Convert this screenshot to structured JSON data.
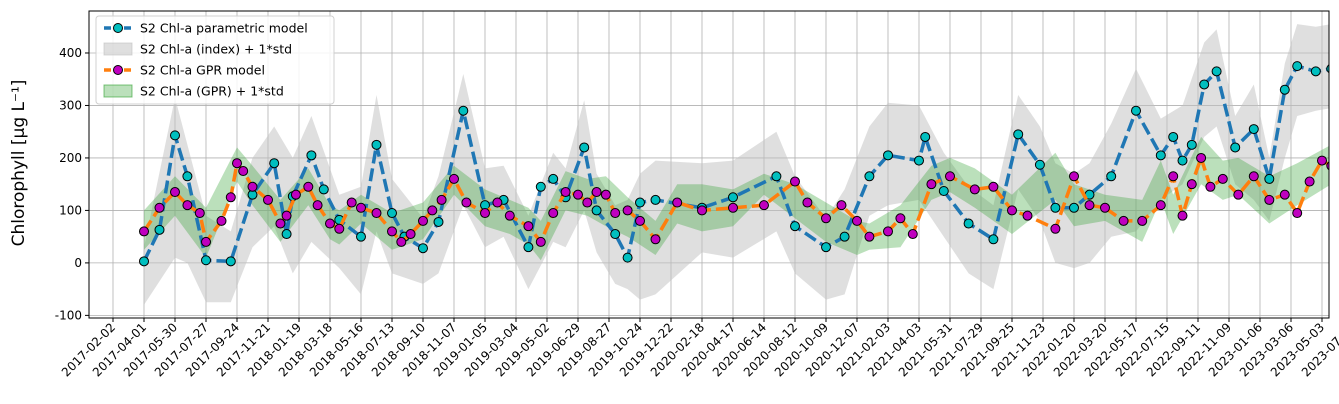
{
  "chart_data": {
    "type": "line",
    "ylabel": "Chlorophyll [μg L⁻¹]",
    "xlabel": "",
    "title": "",
    "grid": true,
    "legend_position": "top-left",
    "ylim": [
      -105,
      480
    ],
    "y_ticks": [
      -100,
      0,
      100,
      200,
      300,
      400
    ],
    "x_ticks": [
      "2017-02-02",
      "2017-04-01",
      "2017-05-30",
      "2017-07-27",
      "2017-09-24",
      "2017-11-21",
      "2018-01-19",
      "2018-03-18",
      "2018-05-16",
      "2018-07-13",
      "2018-09-10",
      "2018-11-07",
      "2019-01-05",
      "2019-03-04",
      "2019-05-02",
      "2019-06-29",
      "2019-08-27",
      "2019-10-24",
      "2019-12-22",
      "2020-02-18",
      "2020-04-17",
      "2020-06-14",
      "2020-08-12",
      "2020-10-09",
      "2020-12-07",
      "2021-02-03",
      "2021-04-03",
      "2021-05-31",
      "2021-07-29",
      "2021-09-25",
      "2021-11-23",
      "2022-01-20",
      "2022-03-20",
      "2022-05-17",
      "2022-07-15",
      "2022-09-11",
      "2022-11-09",
      "2023-01-06",
      "2023-03-06",
      "2023-05-03",
      "2023-07-01"
    ],
    "colors": {
      "parametric_line": "#1f77b4",
      "parametric_marker": "#00bfbf",
      "gpr_line": "#ff7f0e",
      "gpr_marker": "#bf00bf",
      "index_band": "#bfbfbf",
      "gpr_band": "#2ca02c"
    },
    "series": [
      {
        "name": "S2 Chl-a parametric model",
        "key": "parametric",
        "x_tick_index": [
          1.0,
          1.5,
          2.0,
          2.4,
          3.0,
          3.8,
          4.5,
          5.2,
          5.6,
          5.8,
          6.4,
          6.8,
          7.3,
          8.0,
          8.5,
          9.0,
          9.4,
          10.0,
          10.5,
          11.3,
          12.0,
          12.6,
          13.4,
          13.8,
          14.2,
          14.6,
          15.2,
          15.6,
          16.2,
          16.6,
          17.0,
          17.5,
          19.0,
          20.0,
          21.4,
          22.0,
          23.0,
          23.6,
          24.4,
          25.0,
          26.0,
          26.2,
          26.8,
          27.6,
          28.4,
          29.2,
          29.9,
          30.4,
          31.0,
          31.5,
          32.2,
          33.0,
          33.8,
          34.2,
          34.5,
          34.8,
          35.2,
          35.6,
          36.2,
          36.8,
          37.3,
          37.8,
          38.2,
          38.8,
          39.3
        ],
        "values": [
          3,
          63,
          243,
          165,
          5,
          3,
          130,
          190,
          55,
          127,
          205,
          140,
          82,
          50,
          225,
          95,
          50,
          28,
          78,
          290,
          110,
          120,
          30,
          145,
          160,
          125,
          220,
          100,
          55,
          10,
          115,
          120,
          105,
          125,
          165,
          70,
          30,
          50,
          165,
          205,
          195,
          240,
          137,
          75,
          45,
          245,
          187,
          105,
          105,
          130,
          165,
          290,
          205,
          240,
          195,
          225,
          340,
          365,
          220,
          255,
          160,
          330,
          375,
          365,
          370
        ]
      },
      {
        "name": "S2 Chl-a GPR model",
        "key": "gpr",
        "x_tick_index": [
          1.0,
          1.5,
          2.0,
          2.4,
          2.8,
          3.0,
          3.5,
          3.8,
          4.0,
          4.2,
          4.5,
          5.0,
          5.4,
          5.6,
          5.9,
          6.3,
          6.6,
          7.0,
          7.3,
          7.7,
          8.0,
          8.5,
          9.0,
          9.3,
          9.6,
          10.0,
          10.3,
          10.6,
          11.0,
          11.4,
          12.0,
          12.4,
          12.8,
          13.4,
          13.8,
          14.2,
          14.6,
          15.0,
          15.3,
          15.6,
          15.9,
          16.2,
          16.6,
          17.0,
          17.5,
          18.2,
          19.0,
          20.0,
          21.0,
          22.0,
          22.4,
          23.0,
          23.5,
          24.0,
          24.4,
          25.0,
          25.4,
          25.8,
          26.4,
          27.0,
          27.8,
          28.4,
          29.0,
          29.5,
          30.4,
          31.0,
          31.5,
          32.0,
          32.6,
          33.2,
          33.8,
          34.2,
          34.5,
          34.8,
          35.1,
          35.4,
          35.8,
          36.3,
          36.8,
          37.3,
          37.8,
          38.2,
          38.6,
          39.0,
          39.3
        ],
        "values": [
          60,
          105,
          135,
          110,
          95,
          40,
          80,
          125,
          190,
          175,
          145,
          120,
          75,
          90,
          130,
          145,
          110,
          75,
          65,
          115,
          105,
          95,
          60,
          40,
          55,
          80,
          100,
          120,
          160,
          115,
          95,
          115,
          90,
          70,
          40,
          95,
          135,
          130,
          115,
          135,
          130,
          95,
          100,
          80,
          45,
          115,
          100,
          105,
          110,
          155,
          115,
          85,
          110,
          80,
          50,
          60,
          85,
          55,
          150,
          165,
          140,
          145,
          100,
          90,
          65,
          165,
          110,
          105,
          80,
          80,
          110,
          165,
          90,
          150,
          200,
          145,
          160,
          130,
          165,
          120,
          130,
          95,
          155,
          195,
          185
        ]
      }
    ],
    "bands": [
      {
        "name": "S2 Chl-a (index) + 1*std",
        "key": "index_band",
        "x_tick_index": [
          1.0,
          2.0,
          2.4,
          3.0,
          3.8,
          4.5,
          5.2,
          5.8,
          6.4,
          7.3,
          8.0,
          8.5,
          9.0,
          10.0,
          10.5,
          11.3,
          12.0,
          12.6,
          13.4,
          14.2,
          14.6,
          15.2,
          15.6,
          16.2,
          16.6,
          17.0,
          17.5,
          19.0,
          20.0,
          21.4,
          22.0,
          23.0,
          23.6,
          24.4,
          25.0,
          26.0,
          26.8,
          27.6,
          28.4,
          29.2,
          29.9,
          30.4,
          31.0,
          31.5,
          32.2,
          33.0,
          33.8,
          34.5,
          35.2,
          35.6,
          36.2,
          36.8,
          37.3,
          37.8,
          38.2,
          38.8,
          39.3
        ],
        "upper": [
          30,
          315,
          225,
          90,
          60,
          200,
          260,
          200,
          280,
          130,
          145,
          320,
          160,
          85,
          165,
          360,
          180,
          185,
          90,
          210,
          180,
          310,
          170,
          110,
          120,
          170,
          195,
          190,
          195,
          250,
          165,
          85,
          140,
          260,
          305,
          300,
          210,
          145,
          110,
          320,
          260,
          190,
          170,
          190,
          265,
          370,
          275,
          300,
          420,
          445,
          280,
          340,
          200,
          380,
          455,
          450,
          455
        ],
        "lower": [
          -80,
          10,
          0,
          -75,
          -75,
          30,
          70,
          -20,
          40,
          -10,
          -60,
          60,
          -20,
          -40,
          -20,
          110,
          30,
          50,
          -50,
          40,
          30,
          100,
          20,
          -40,
          -50,
          -70,
          -60,
          20,
          10,
          60,
          -20,
          -70,
          -60,
          90,
          110,
          120,
          50,
          -20,
          -50,
          140,
          80,
          0,
          -10,
          0,
          50,
          60,
          120,
          150,
          240,
          260,
          150,
          120,
          80,
          200,
          280,
          290,
          295
        ]
      },
      {
        "name": "S2 Chl-a (GPR) + 1*std",
        "key": "gpr_band",
        "x_tick_index": [
          1.0,
          2.0,
          3.0,
          4.0,
          4.5,
          5.4,
          6.3,
          7.0,
          7.3,
          8.0,
          9.0,
          10.0,
          11.0,
          12.0,
          12.8,
          13.4,
          13.8,
          14.6,
          15.3,
          15.9,
          16.6,
          17.5,
          18.2,
          19.0,
          20.0,
          21.0,
          22.0,
          23.0,
          24.0,
          24.4,
          25.4,
          26.4,
          27.0,
          27.8,
          29.0,
          30.4,
          31.0,
          32.0,
          33.2,
          33.8,
          34.2,
          35.1,
          35.8,
          36.3,
          37.3,
          38.2,
          39.3
        ],
        "upper": [
          100,
          165,
          105,
          220,
          185,
          120,
          180,
          110,
          100,
          130,
          95,
          115,
          185,
          140,
          120,
          105,
          80,
          175,
          160,
          165,
          125,
          80,
          150,
          150,
          140,
          170,
          150,
          115,
          80,
          75,
          110,
          185,
          200,
          180,
          130,
          210,
          150,
          130,
          120,
          195,
          130,
          240,
          195,
          200,
          165,
          190,
          225
        ],
        "lower": [
          25,
          90,
          10,
          155,
          110,
          40,
          110,
          45,
          35,
          75,
          25,
          45,
          130,
          70,
          55,
          35,
          5,
          100,
          90,
          70,
          50,
          15,
          75,
          60,
          70,
          130,
          85,
          40,
          15,
          25,
          30,
          120,
          135,
          105,
          55,
          120,
          70,
          80,
          40,
          120,
          55,
          150,
          120,
          130,
          75,
          110,
          150
        ]
      }
    ],
    "legend": [
      {
        "label": "S2 Chl-a parametric model",
        "kind": "line",
        "line_color": "#1f77b4",
        "marker_color": "#00bfbf",
        "dash": true
      },
      {
        "label": "S2 Chl-a (index) + 1*std",
        "kind": "band",
        "fill": "#bfbfbf"
      },
      {
        "label": "S2 Chl-a GPR model",
        "kind": "line",
        "line_color": "#ff7f0e",
        "marker_color": "#bf00bf",
        "dash": true
      },
      {
        "label": "S2 Chl-a (GPR) + 1*std",
        "kind": "band",
        "fill": "#2ca02c"
      }
    ]
  }
}
